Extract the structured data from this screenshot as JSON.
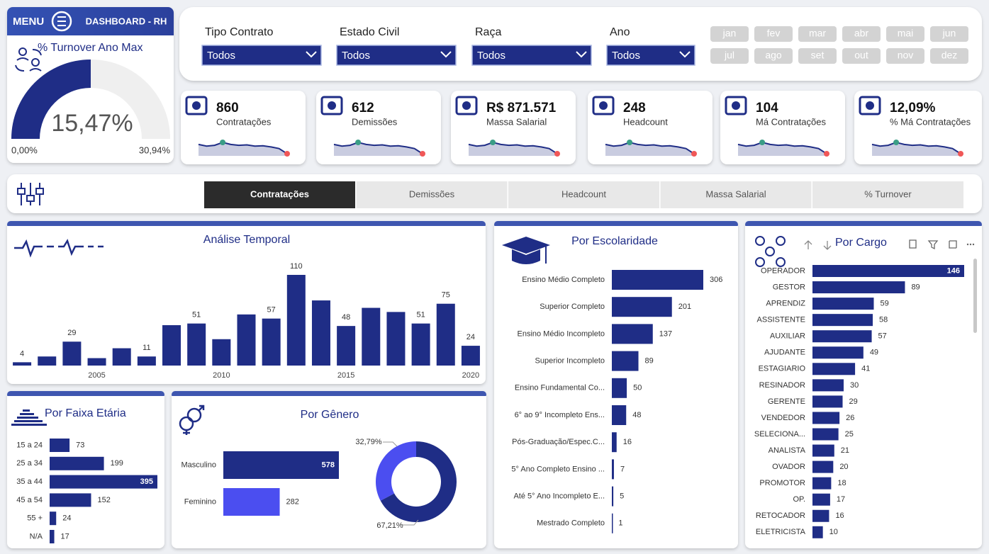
{
  "header": {
    "menu": "MENU",
    "title": "DASHBOARD - RH"
  },
  "filters": [
    {
      "label": "Tipo Contrato",
      "value": "Todos"
    },
    {
      "label": "Estado Civil",
      "value": "Todos"
    },
    {
      "label": "Raça",
      "value": "Todos"
    },
    {
      "label": "Ano",
      "value": "Todos"
    }
  ],
  "months": [
    "jan",
    "fev",
    "mar",
    "abr",
    "mai",
    "jun",
    "jul",
    "ago",
    "set",
    "out",
    "nov",
    "dez"
  ],
  "kpis": [
    {
      "value": "860",
      "label": "Contratações",
      "trend": [
        5,
        4.2,
        4.6,
        6,
        5,
        4.6,
        4.8,
        4.2,
        4.4,
        3.8,
        3,
        0.5
      ]
    },
    {
      "value": "612",
      "label": "Demissões",
      "trend": [
        5,
        4.2,
        4.6,
        6,
        5,
        4.6,
        4.8,
        4.2,
        4.4,
        3.8,
        3,
        0.5
      ]
    },
    {
      "value": "R$ 871.571",
      "label": "Massa Salarial",
      "trend": [
        5,
        4.2,
        4.6,
        6,
        5,
        4.6,
        4.8,
        4.2,
        4.4,
        3.8,
        3,
        0.5
      ]
    },
    {
      "value": "248",
      "label": "Headcount",
      "trend": [
        5,
        4.2,
        4.6,
        6,
        5,
        4.6,
        4.8,
        4.2,
        4.4,
        3.8,
        3,
        0.5
      ]
    },
    {
      "value": "104",
      "label": "Má Contratações",
      "trend": [
        5,
        4.2,
        4.6,
        6,
        5,
        4.6,
        4.8,
        4.2,
        4.4,
        3.8,
        3,
        0.5
      ]
    },
    {
      "value": "12,09%",
      "label": "% Má Contratações",
      "trend": [
        5,
        4.2,
        4.6,
        6,
        5,
        4.6,
        4.8,
        4.2,
        4.4,
        3.8,
        3,
        0.5
      ]
    }
  ],
  "tabs": {
    "items": [
      "Contratações",
      "Demissões",
      "Headcount",
      "Massa Salarial",
      "% Turnover"
    ],
    "active": 0
  },
  "chart_data": [
    {
      "type": "gauge",
      "title": "% Turnover Ano Max",
      "value": 15.47,
      "value_label": "15,47%",
      "min": 0,
      "min_label": "0,00%",
      "max": 30.94,
      "max_label": "30,94%",
      "color": "#1f2d86"
    },
    {
      "type": "bar",
      "title": "Análise Temporal",
      "x": [
        2002,
        2003,
        2004,
        2005,
        2006,
        2007,
        2008,
        2009,
        2010,
        2011,
        2012,
        2013,
        2014,
        2015,
        2016,
        2017,
        2018,
        2019,
        2020
      ],
      "values": [
        4,
        11,
        29,
        9,
        21,
        11,
        49,
        51,
        32,
        62,
        57,
        110,
        79,
        48,
        70,
        65,
        51,
        75,
        24
      ],
      "value_labels": [
        "4",
        null,
        "29",
        null,
        null,
        "11",
        null,
        "51",
        null,
        null,
        "57",
        "110",
        null,
        "48",
        null,
        null,
        "51",
        "75",
        "24"
      ],
      "xlim": [
        2001.5,
        2020.5
      ],
      "xticks": [
        2005,
        2010,
        2015,
        2020
      ],
      "color": "#1f2d86"
    },
    {
      "type": "hbar",
      "title": "Por Faixa Etária",
      "categories": [
        "15 a 24",
        "25 a 34",
        "35 a 44",
        "45 a 54",
        "55 +",
        "N/A"
      ],
      "values": [
        73,
        199,
        395,
        152,
        24,
        17
      ],
      "color": "#1f2d86"
    },
    {
      "type": "hbar",
      "title": "Por Gênero",
      "categories": [
        "Masculino",
        "Feminino"
      ],
      "values": [
        578,
        282
      ],
      "colors": [
        "#1f2d86",
        "#4b4ef0"
      ]
    },
    {
      "type": "pie",
      "donut": true,
      "values": [
        67.21,
        32.79
      ],
      "value_labels": [
        "67,21%",
        "32,79%"
      ],
      "colors": [
        "#1f2d86",
        "#4b4ef0"
      ]
    },
    {
      "type": "hbar",
      "title": "Por Escolaridade",
      "categories": [
        "Ensino Médio Completo",
        "Superior Completo",
        "Ensino Médio Incompleto",
        "Superior Incompleto",
        "Ensino Fundamental Co...",
        "6° ao 9° Incompleto Ens...",
        "Pós-Graduação/Espec.C...",
        "5° Ano Completo Ensino ...",
        "Até 5° Ano Incompleto E...",
        "Mestrado Completo"
      ],
      "values": [
        306,
        201,
        137,
        89,
        50,
        48,
        16,
        7,
        5,
        1
      ],
      "color": "#1f2d86"
    },
    {
      "type": "hbar",
      "title": "Por Cargo",
      "categories": [
        "OPERADOR",
        "GESTOR",
        "APRENDIZ",
        "ASSISTENTE",
        "AUXILIAR",
        "AJUDANTE",
        "ESTAGIARIO",
        "RESINADOR",
        "GERENTE",
        "VENDEDOR",
        "SELECIONA...",
        "ANALISTA",
        "OVADOR",
        "PROMOTOR",
        "OP.",
        "RETOCADOR",
        "ELETRICISTA"
      ],
      "values": [
        146,
        89,
        59,
        58,
        57,
        49,
        41,
        30,
        29,
        26,
        25,
        21,
        20,
        18,
        17,
        16,
        10
      ],
      "color": "#1f2d86"
    }
  ]
}
